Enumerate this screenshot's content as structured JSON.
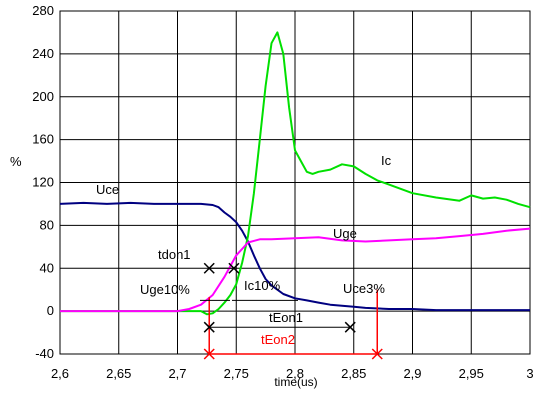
{
  "chart_data": {
    "type": "line",
    "xlabel": "time(us)",
    "ylabel": "%",
    "xlim": [
      2.6,
      3.0
    ],
    "ylim": [
      -40,
      280
    ],
    "xticks": [
      "2,6",
      "2,65",
      "2,7",
      "2,75",
      "2,8",
      "2,85",
      "2,9",
      "2,95",
      "3"
    ],
    "yticks": [
      "-40",
      "0",
      "40",
      "80",
      "120",
      "160",
      "200",
      "240",
      "280"
    ],
    "grid": true,
    "series": [
      {
        "name": "Uce",
        "color": "#000080",
        "x": [
          2.6,
          2.62,
          2.64,
          2.66,
          2.68,
          2.7,
          2.72,
          2.73,
          2.735,
          2.74,
          2.745,
          2.75,
          2.755,
          2.76,
          2.765,
          2.77,
          2.775,
          2.78,
          2.785,
          2.79,
          2.8,
          2.81,
          2.82,
          2.83,
          2.84,
          2.85,
          2.86,
          2.88,
          2.9,
          2.92,
          2.94,
          2.96,
          2.98,
          3.0
        ],
        "y": [
          100,
          101,
          100,
          101,
          100,
          100,
          100,
          99,
          97,
          92,
          88,
          83,
          75,
          65,
          52,
          40,
          30,
          24,
          20,
          16,
          12,
          10,
          8,
          6,
          5,
          4,
          3,
          2,
          2,
          1,
          1,
          1,
          1,
          1
        ]
      },
      {
        "name": "Ic",
        "color": "#00e000",
        "x": [
          2.6,
          2.65,
          2.7,
          2.72,
          2.725,
          2.73,
          2.735,
          2.74,
          2.745,
          2.75,
          2.755,
          2.76,
          2.765,
          2.77,
          2.775,
          2.78,
          2.785,
          2.79,
          2.795,
          2.8,
          2.805,
          2.81,
          2.815,
          2.82,
          2.83,
          2.84,
          2.85,
          2.86,
          2.87,
          2.88,
          2.9,
          2.92,
          2.94,
          2.95,
          2.96,
          2.97,
          2.98,
          2.99,
          3.0
        ],
        "y": [
          0,
          0,
          0,
          0,
          -3,
          -2,
          2,
          8,
          15,
          25,
          45,
          70,
          110,
          160,
          210,
          250,
          260,
          240,
          190,
          150,
          140,
          130,
          128,
          130,
          132,
          137,
          135,
          128,
          122,
          118,
          110,
          106,
          103,
          108,
          105,
          106,
          104,
          100,
          97
        ]
      },
      {
        "name": "Uge",
        "color": "#ff00ff",
        "x": [
          2.6,
          2.65,
          2.7,
          2.71,
          2.72,
          2.73,
          2.74,
          2.75,
          2.76,
          2.77,
          2.78,
          2.8,
          2.82,
          2.84,
          2.86,
          2.88,
          2.9,
          2.92,
          2.94,
          2.96,
          2.98,
          3.0
        ],
        "y": [
          0,
          0,
          0,
          2,
          6,
          15,
          32,
          52,
          64,
          67,
          67,
          68,
          69,
          66,
          65,
          66,
          67,
          68,
          70,
          72,
          75,
          77
        ]
      }
    ],
    "annotations": {
      "uce_label": "Uce",
      "ic_label": "Ic",
      "uge_label": "Uge",
      "tdon1": "tdon1",
      "uge10": "Uge10%",
      "ic10": "Ic10%",
      "uce3": "Uce3%",
      "teon1": "tEon1",
      "teon2": "tEon2"
    },
    "markers": {
      "t1": 2.727,
      "t2": 2.748,
      "t3": 2.847,
      "t4": 2.87,
      "tdon_y": 40,
      "teon1_y": -15,
      "teon2_y": -40
    }
  }
}
